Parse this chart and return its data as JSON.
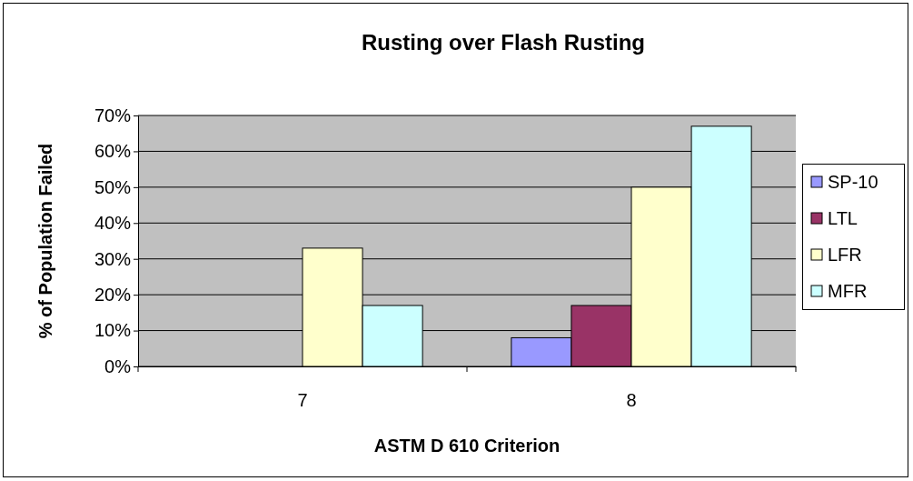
{
  "chart_data": {
    "type": "bar",
    "title": "Rusting over Flash Rusting",
    "xlabel": "ASTM D 610 Criterion",
    "ylabel": "% of Population Failed",
    "categories": [
      "7",
      "8"
    ],
    "series": [
      {
        "name": "SP-10",
        "color": "#9999ff",
        "values": [
          0,
          8
        ]
      },
      {
        "name": "LTL",
        "color": "#993366",
        "values": [
          0,
          17
        ]
      },
      {
        "name": "LFR",
        "color": "#ffffcc",
        "values": [
          33,
          50
        ]
      },
      {
        "name": "MFR",
        "color": "#ccffff",
        "values": [
          17,
          67
        ]
      }
    ],
    "ylim": [
      0,
      70
    ],
    "yticks": [
      {
        "value": 0,
        "label": "0%"
      },
      {
        "value": 10,
        "label": "10%"
      },
      {
        "value": 20,
        "label": "20%"
      },
      {
        "value": 30,
        "label": "30%"
      },
      {
        "value": 40,
        "label": "40%"
      },
      {
        "value": 50,
        "label": "50%"
      },
      {
        "value": 60,
        "label": "60%"
      },
      {
        "value": 70,
        "label": "70%"
      }
    ],
    "grid": "y",
    "legend": "right"
  }
}
